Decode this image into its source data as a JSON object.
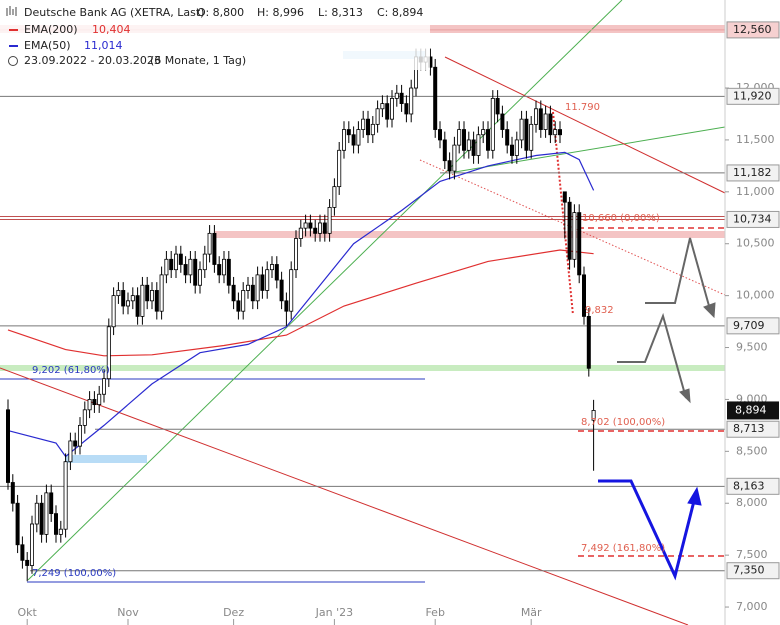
{
  "header": {
    "title": "Deutsche Bank AG (XETRA, Last)",
    "open": "O: 8,800",
    "high": "H: 8,996",
    "low": "L: 8,313",
    "close": "C: 8,894",
    "ema200": "EMA(200)",
    "ema200_value": "10,404",
    "ema50": "EMA(50)",
    "ema50_value": "11,014",
    "range": "23.09.2022 - 20.03.2023",
    "period": "(6 Monate, 1 Tag)"
  },
  "chart_data": {
    "type": "candlestick",
    "xlim": [
      -1.667,
      149.375
    ],
    "ylim": [
      6.827,
      12.848
    ],
    "xticks": [
      {
        "value": 4,
        "label": "Okt"
      },
      {
        "value": 25,
        "label": "Nov"
      },
      {
        "value": 47,
        "label": "Dez"
      },
      {
        "value": 68,
        "label": "Jan '23"
      },
      {
        "value": 89,
        "label": "Feb"
      },
      {
        "value": 109,
        "label": "Mär"
      }
    ],
    "yticks": [
      {
        "value": 7,
        "label": "7,000"
      },
      {
        "value": 7.5,
        "label": "7,500"
      },
      {
        "value": 8,
        "label": "8,000"
      },
      {
        "value": 8.5,
        "label": "8,500"
      },
      {
        "value": 9,
        "label": "9,000"
      },
      {
        "value": 9.5,
        "label": "9,500"
      },
      {
        "value": 10,
        "label": "10,000"
      },
      {
        "value": 10.5,
        "label": "10,500"
      },
      {
        "value": 11,
        "label": "11,000"
      },
      {
        "value": 11.5,
        "label": "11,500"
      },
      {
        "value": 12,
        "label": "12,000"
      }
    ],
    "open": [
      8.9,
      8.2,
      8.0,
      7.6,
      7.45,
      7.4,
      7.8,
      8.0,
      7.7,
      8.1,
      7.9,
      7.7,
      7.75,
      8.4,
      8.6,
      8.55,
      8.75,
      8.9,
      9.0,
      8.95,
      9.05,
      9.2,
      9.7,
      10.0,
      10.05,
      9.9,
      9.95,
      10.0,
      9.8,
      10.1,
      9.95,
      10.05,
      9.85,
      10.2,
      10.35,
      10.25,
      10.4,
      10.3,
      10.2,
      10.35,
      10.1,
      10.25,
      10.4,
      10.6,
      10.3,
      10.2,
      10.35,
      10.1,
      9.95,
      9.85,
      10.05,
      10.1,
      9.95,
      10.2,
      10.05,
      10.25,
      10.3,
      10.15,
      9.95,
      9.85,
      10.25,
      10.55,
      10.65,
      10.7,
      10.65,
      10.6,
      10.7,
      10.6,
      10.85,
      11.05,
      11.4,
      11.6,
      11.55,
      11.45,
      11.6,
      11.7,
      11.55,
      11.65,
      11.8,
      11.85,
      11.7,
      11.9,
      11.95,
      11.85,
      11.75,
      12.0,
      12.3,
      12.25,
      12.3,
      12.2,
      11.6,
      11.5,
      11.3,
      11.2,
      11.45,
      11.6,
      11.4,
      11.5,
      11.35,
      11.55,
      11.6,
      11.4,
      11.9,
      11.75,
      11.6,
      11.45,
      11.35,
      11.5,
      11.7,
      11.4,
      11.65,
      11.8,
      11.6,
      11.75,
      11.55,
      11.6,
      11.0,
      10.9,
      10.35,
      10.8,
      10.2,
      9.8,
      8.8
    ],
    "high": [
      9.0,
      8.28,
      8.08,
      7.68,
      7.53,
      7.88,
      8.08,
      8.08,
      8.18,
      8.18,
      7.98,
      7.83,
      8.48,
      8.68,
      8.68,
      8.83,
      8.98,
      9.08,
      9.08,
      9.13,
      9.28,
      9.78,
      10.08,
      10.13,
      10.13,
      10.03,
      10.08,
      10.08,
      10.18,
      10.18,
      10.13,
      10.13,
      10.28,
      10.43,
      10.43,
      10.48,
      10.48,
      10.38,
      10.43,
      10.43,
      10.33,
      10.48,
      10.68,
      10.68,
      10.38,
      10.43,
      10.43,
      10.18,
      10.03,
      10.13,
      10.18,
      10.18,
      10.28,
      10.28,
      10.33,
      10.38,
      10.38,
      10.23,
      10.03,
      10.33,
      10.63,
      10.73,
      10.78,
      10.78,
      10.73,
      10.78,
      10.78,
      10.93,
      11.13,
      11.48,
      11.68,
      11.68,
      11.63,
      11.68,
      11.78,
      11.78,
      11.73,
      11.88,
      11.93,
      11.93,
      11.98,
      12.03,
      12.03,
      11.93,
      12.08,
      12.38,
      12.38,
      12.38,
      12.38,
      12.28,
      11.68,
      11.58,
      11.38,
      11.53,
      11.68,
      11.68,
      11.58,
      11.58,
      11.63,
      11.68,
      11.68,
      11.98,
      11.98,
      11.83,
      11.68,
      11.53,
      11.58,
      11.78,
      11.78,
      11.73,
      11.88,
      11.88,
      11.83,
      11.83,
      11.68,
      11.68,
      11.0,
      10.95,
      10.88,
      10.88,
      10.28,
      9.88,
      8.996
    ],
    "low": [
      8.13,
      7.92,
      7.52,
      7.37,
      7.249,
      7.32,
      7.72,
      7.62,
      7.62,
      7.82,
      7.62,
      7.62,
      7.67,
      8.32,
      8.47,
      8.47,
      8.67,
      8.82,
      8.87,
      8.87,
      8.97,
      9.12,
      9.62,
      9.92,
      9.82,
      9.82,
      9.87,
      9.72,
      9.72,
      9.87,
      9.87,
      9.77,
      9.77,
      10.12,
      10.17,
      10.17,
      10.22,
      10.12,
      10.12,
      10.02,
      10.02,
      10.17,
      10.32,
      10.22,
      10.12,
      10.12,
      10.02,
      9.87,
      9.77,
      9.77,
      9.97,
      9.87,
      9.87,
      9.97,
      9.97,
      10.17,
      10.07,
      9.87,
      9.709,
      9.77,
      10.17,
      10.47,
      10.57,
      10.57,
      10.52,
      10.52,
      10.52,
      10.52,
      10.77,
      10.97,
      11.32,
      11.47,
      11.37,
      11.37,
      11.52,
      11.47,
      11.47,
      11.57,
      11.72,
      11.62,
      11.62,
      11.82,
      11.77,
      11.67,
      11.67,
      11.92,
      12.17,
      12.17,
      12.12,
      11.52,
      11.42,
      11.22,
      11.12,
      11.12,
      11.37,
      11.32,
      11.32,
      11.27,
      11.27,
      11.47,
      11.32,
      11.32,
      11.67,
      11.52,
      11.37,
      11.27,
      11.27,
      11.42,
      11.32,
      11.32,
      11.57,
      11.52,
      11.52,
      11.47,
      11.47,
      11.47,
      10.55,
      10.25,
      10.27,
      10.12,
      9.72,
      9.22,
      8.313
    ],
    "close": [
      8.2,
      8.0,
      7.6,
      7.45,
      7.4,
      7.8,
      8.0,
      7.7,
      8.1,
      7.9,
      7.7,
      7.75,
      8.4,
      8.6,
      8.55,
      8.75,
      8.9,
      9.0,
      8.95,
      9.05,
      9.2,
      9.7,
      10.0,
      10.05,
      9.9,
      9.95,
      10.0,
      9.8,
      10.1,
      9.95,
      10.05,
      9.85,
      10.2,
      10.35,
      10.25,
      10.4,
      10.3,
      10.2,
      10.35,
      10.1,
      10.25,
      10.4,
      10.6,
      10.3,
      10.2,
      10.35,
      10.1,
      9.95,
      9.85,
      10.05,
      10.1,
      9.95,
      10.2,
      10.05,
      10.25,
      10.3,
      10.15,
      9.95,
      9.85,
      10.25,
      10.55,
      10.65,
      10.7,
      10.65,
      10.6,
      10.7,
      10.6,
      10.85,
      11.05,
      11.4,
      11.6,
      11.55,
      11.45,
      11.6,
      11.7,
      11.55,
      11.65,
      11.8,
      11.85,
      11.7,
      11.9,
      11.95,
      11.85,
      11.75,
      12.0,
      12.3,
      12.25,
      12.3,
      12.2,
      11.6,
      11.5,
      11.3,
      11.2,
      11.45,
      11.6,
      11.4,
      11.5,
      11.35,
      11.55,
      11.6,
      11.4,
      11.9,
      11.75,
      11.6,
      11.45,
      11.35,
      11.5,
      11.7,
      11.4,
      11.65,
      11.8,
      11.6,
      11.75,
      11.55,
      11.6,
      11.55,
      10.9,
      10.35,
      10.8,
      10.2,
      9.8,
      9.3,
      8.894
    ],
    "series": [
      {
        "name": "EMA(200)",
        "color": "#e03030",
        "x": [
          0,
          12,
          20,
          30,
          45,
          58,
          70,
          85,
          100,
          115,
          122
        ],
        "values": [
          9.67,
          9.48,
          9.42,
          9.43,
          9.52,
          9.62,
          9.9,
          10.12,
          10.33,
          10.44,
          10.404
        ]
      },
      {
        "name": "EMA(50)",
        "color": "#2a2ad0",
        "x": [
          0,
          10,
          12,
          20,
          30,
          40,
          50,
          58,
          65,
          72,
          82,
          90,
          100,
          110,
          116,
          119,
          122
        ],
        "values": [
          8.7,
          8.58,
          8.45,
          8.75,
          9.15,
          9.45,
          9.53,
          9.7,
          10.1,
          10.5,
          10.82,
          11.1,
          11.25,
          11.35,
          11.38,
          11.31,
          11.014
        ]
      }
    ],
    "levels": [
      {
        "value": 12.56,
        "label": "12,560"
      },
      {
        "value": 11.92,
        "label": "11,920"
      },
      {
        "value": 11.182,
        "label": "11,182"
      },
      {
        "value": 10.734,
        "label": "10,734"
      },
      {
        "value": 9.709,
        "label": "9,709"
      },
      {
        "value": 8.713,
        "label": "8,713"
      },
      {
        "value": 8.163,
        "label": "8,163"
      },
      {
        "value": 7.35,
        "label": "7,350"
      }
    ],
    "current": {
      "value": 8.894,
      "label": "8,894"
    },
    "annotations": [
      "11.790",
      "10,660 (0,00%)",
      "9,832",
      "9,202 (61,80%)",
      "8,702 (100,00%)",
      "7,492 (161,80%)",
      "7,249 (100,00%)"
    ]
  }
}
